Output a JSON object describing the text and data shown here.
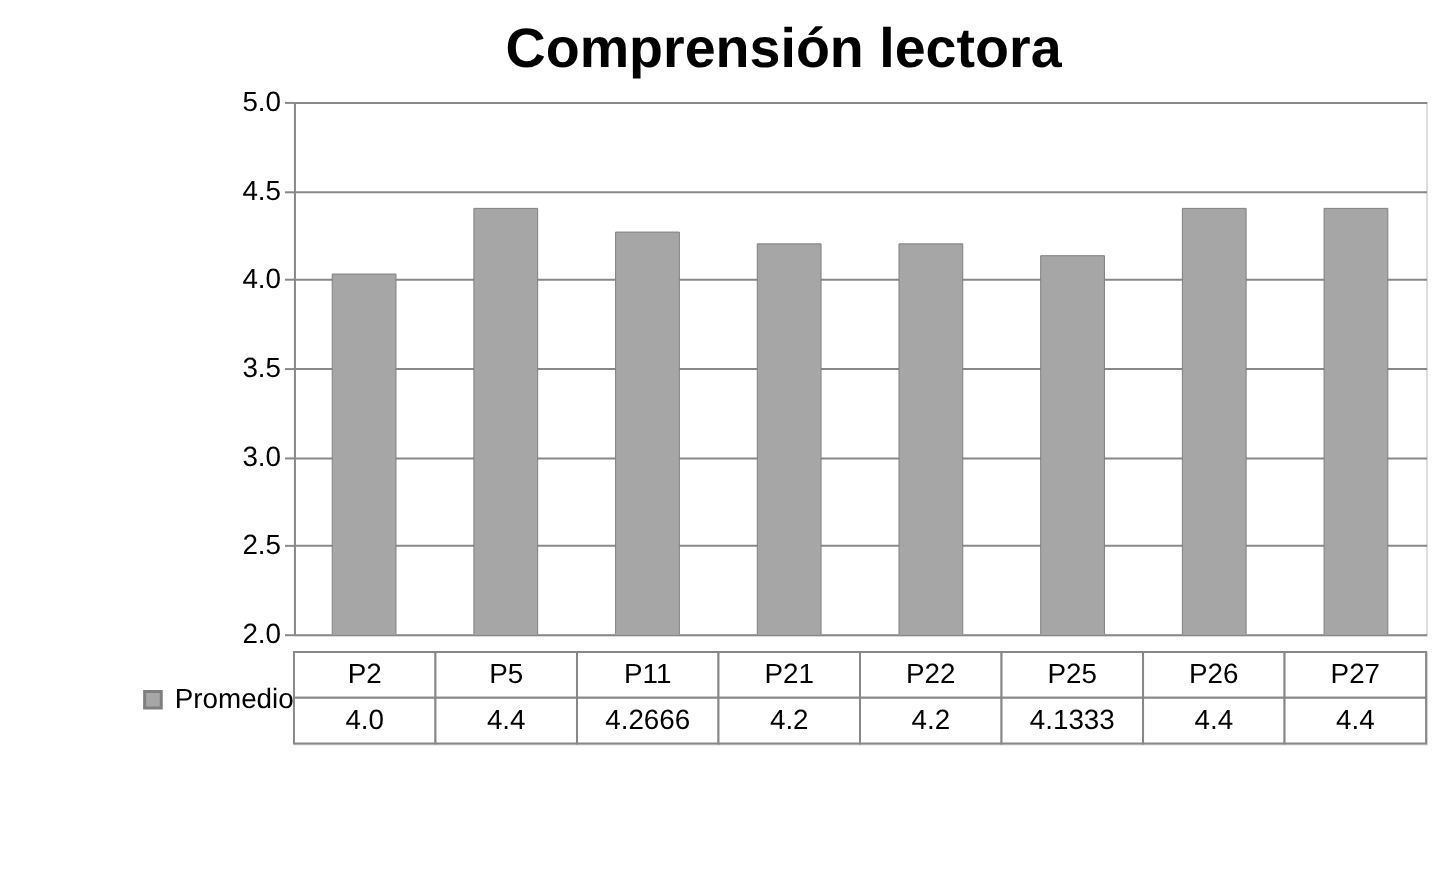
{
  "chart_data": {
    "type": "bar",
    "title": "Comprensión lectora",
    "categories": [
      "P2",
      "P5",
      "P11",
      "P21",
      "P22",
      "P25",
      "P26",
      "P27"
    ],
    "series": [
      {
        "name": "Promedio",
        "color": "#a6a6a6",
        "values": [
          4.03,
          4.4,
          4.2666,
          4.2,
          4.2,
          4.1333,
          4.4,
          4.4
        ],
        "value_labels": [
          "4.0",
          "4.4",
          "4.2666",
          "4.2",
          "4.2",
          "4.1333",
          "4.4",
          "4.4"
        ]
      }
    ],
    "ylim": [
      2.0,
      5.0
    ],
    "yticks": [
      {
        "value": 2.0,
        "label": "2.0"
      },
      {
        "value": 2.5,
        "label": "2.5"
      },
      {
        "value": 3.0,
        "label": "3.0"
      },
      {
        "value": 3.5,
        "label": "3.5"
      },
      {
        "value": 4.0,
        "label": "4.0"
      },
      {
        "value": 4.5,
        "label": "4.5"
      },
      {
        "value": 5.0,
        "label": "5.0"
      }
    ],
    "grid": "y",
    "legend": "bottom left"
  }
}
